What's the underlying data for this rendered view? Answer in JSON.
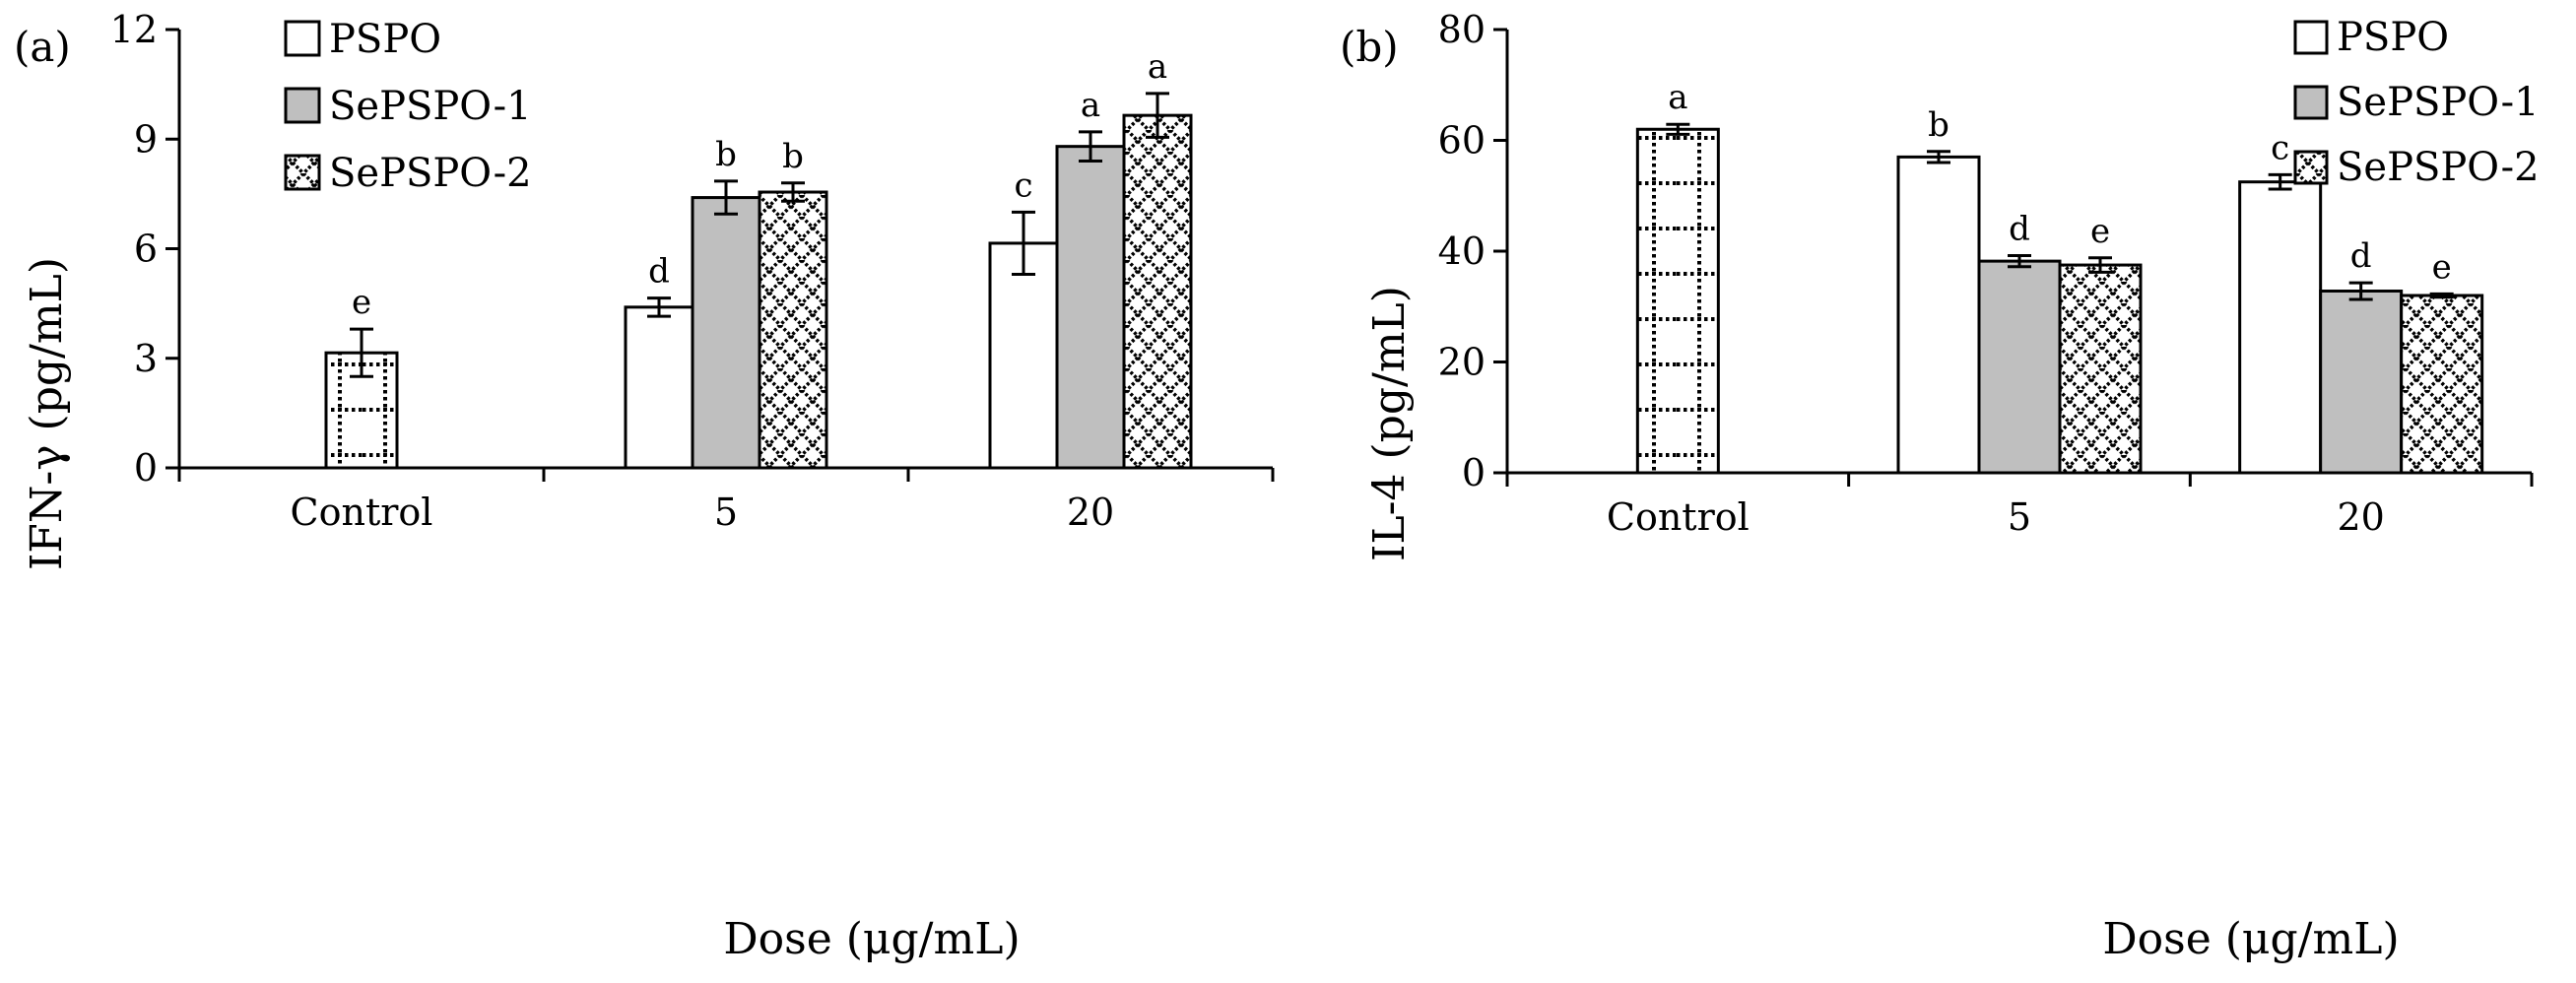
{
  "colors": {
    "PSPO": "#ffffff",
    "SePSPO-1": "#bfbfbf",
    "SePSPO-2": "#ffffff",
    "pattern": "#000000"
  },
  "chart_data": [
    {
      "type": "bar",
      "panel_label": "(a)",
      "title": "",
      "xlabel": "Dose (μg/mL)",
      "ylabel": "IFN-γ (pg/mL)",
      "ylim": [
        0,
        12
      ],
      "yticks": [
        0,
        3,
        6,
        9,
        12
      ],
      "categories": [
        "Control",
        "5",
        "20"
      ],
      "legend": [
        "PSPO",
        "SePSPO-1",
        "SePSPO-2"
      ],
      "legend_position": "top-left",
      "series": [
        {
          "name": "PSPO",
          "values": [
            null,
            4.4,
            6.15
          ],
          "errors": [
            null,
            0.25,
            0.85
          ],
          "letters": [
            null,
            "d",
            "c"
          ]
        },
        {
          "name": "SePSPO-1",
          "values": [
            null,
            7.4,
            8.8
          ],
          "errors": [
            null,
            0.45,
            0.4
          ],
          "letters": [
            null,
            "b",
            "a"
          ]
        },
        {
          "name": "SePSPO-2",
          "values": [
            null,
            7.55,
            9.65
          ],
          "errors": [
            null,
            0.25,
            0.6
          ],
          "letters": [
            null,
            "b",
            "a"
          ]
        }
      ],
      "control": {
        "value": 3.15,
        "error": 0.65,
        "letter": "e",
        "pattern": "dotted-grid"
      }
    },
    {
      "type": "bar",
      "panel_label": "(b)",
      "title": "",
      "xlabel": "Dose (μg/mL)",
      "ylabel": "IL-4 (pg/mL)",
      "ylim": [
        0,
        80
      ],
      "yticks": [
        0,
        20,
        40,
        60,
        80
      ],
      "categories": [
        "Control",
        "5",
        "20"
      ],
      "legend": [
        "PSPO",
        "SePSPO-1",
        "SePSPO-2"
      ],
      "legend_position": "top-right",
      "series": [
        {
          "name": "PSPO",
          "values": [
            null,
            57.0,
            52.5
          ],
          "errors": [
            null,
            1.0,
            1.3
          ],
          "letters": [
            null,
            "b",
            "c"
          ]
        },
        {
          "name": "SePSPO-1",
          "values": [
            null,
            38.2,
            32.8
          ],
          "errors": [
            null,
            1.0,
            1.5
          ],
          "letters": [
            null,
            "d",
            "d"
          ]
        },
        {
          "name": "SePSPO-2",
          "values": [
            null,
            37.5,
            32.0
          ],
          "errors": [
            null,
            1.3,
            0.3
          ],
          "letters": [
            null,
            "e",
            "e"
          ]
        }
      ],
      "control": {
        "value": 62.0,
        "error": 0.9,
        "letter": "a",
        "pattern": "dotted-grid"
      }
    }
  ]
}
